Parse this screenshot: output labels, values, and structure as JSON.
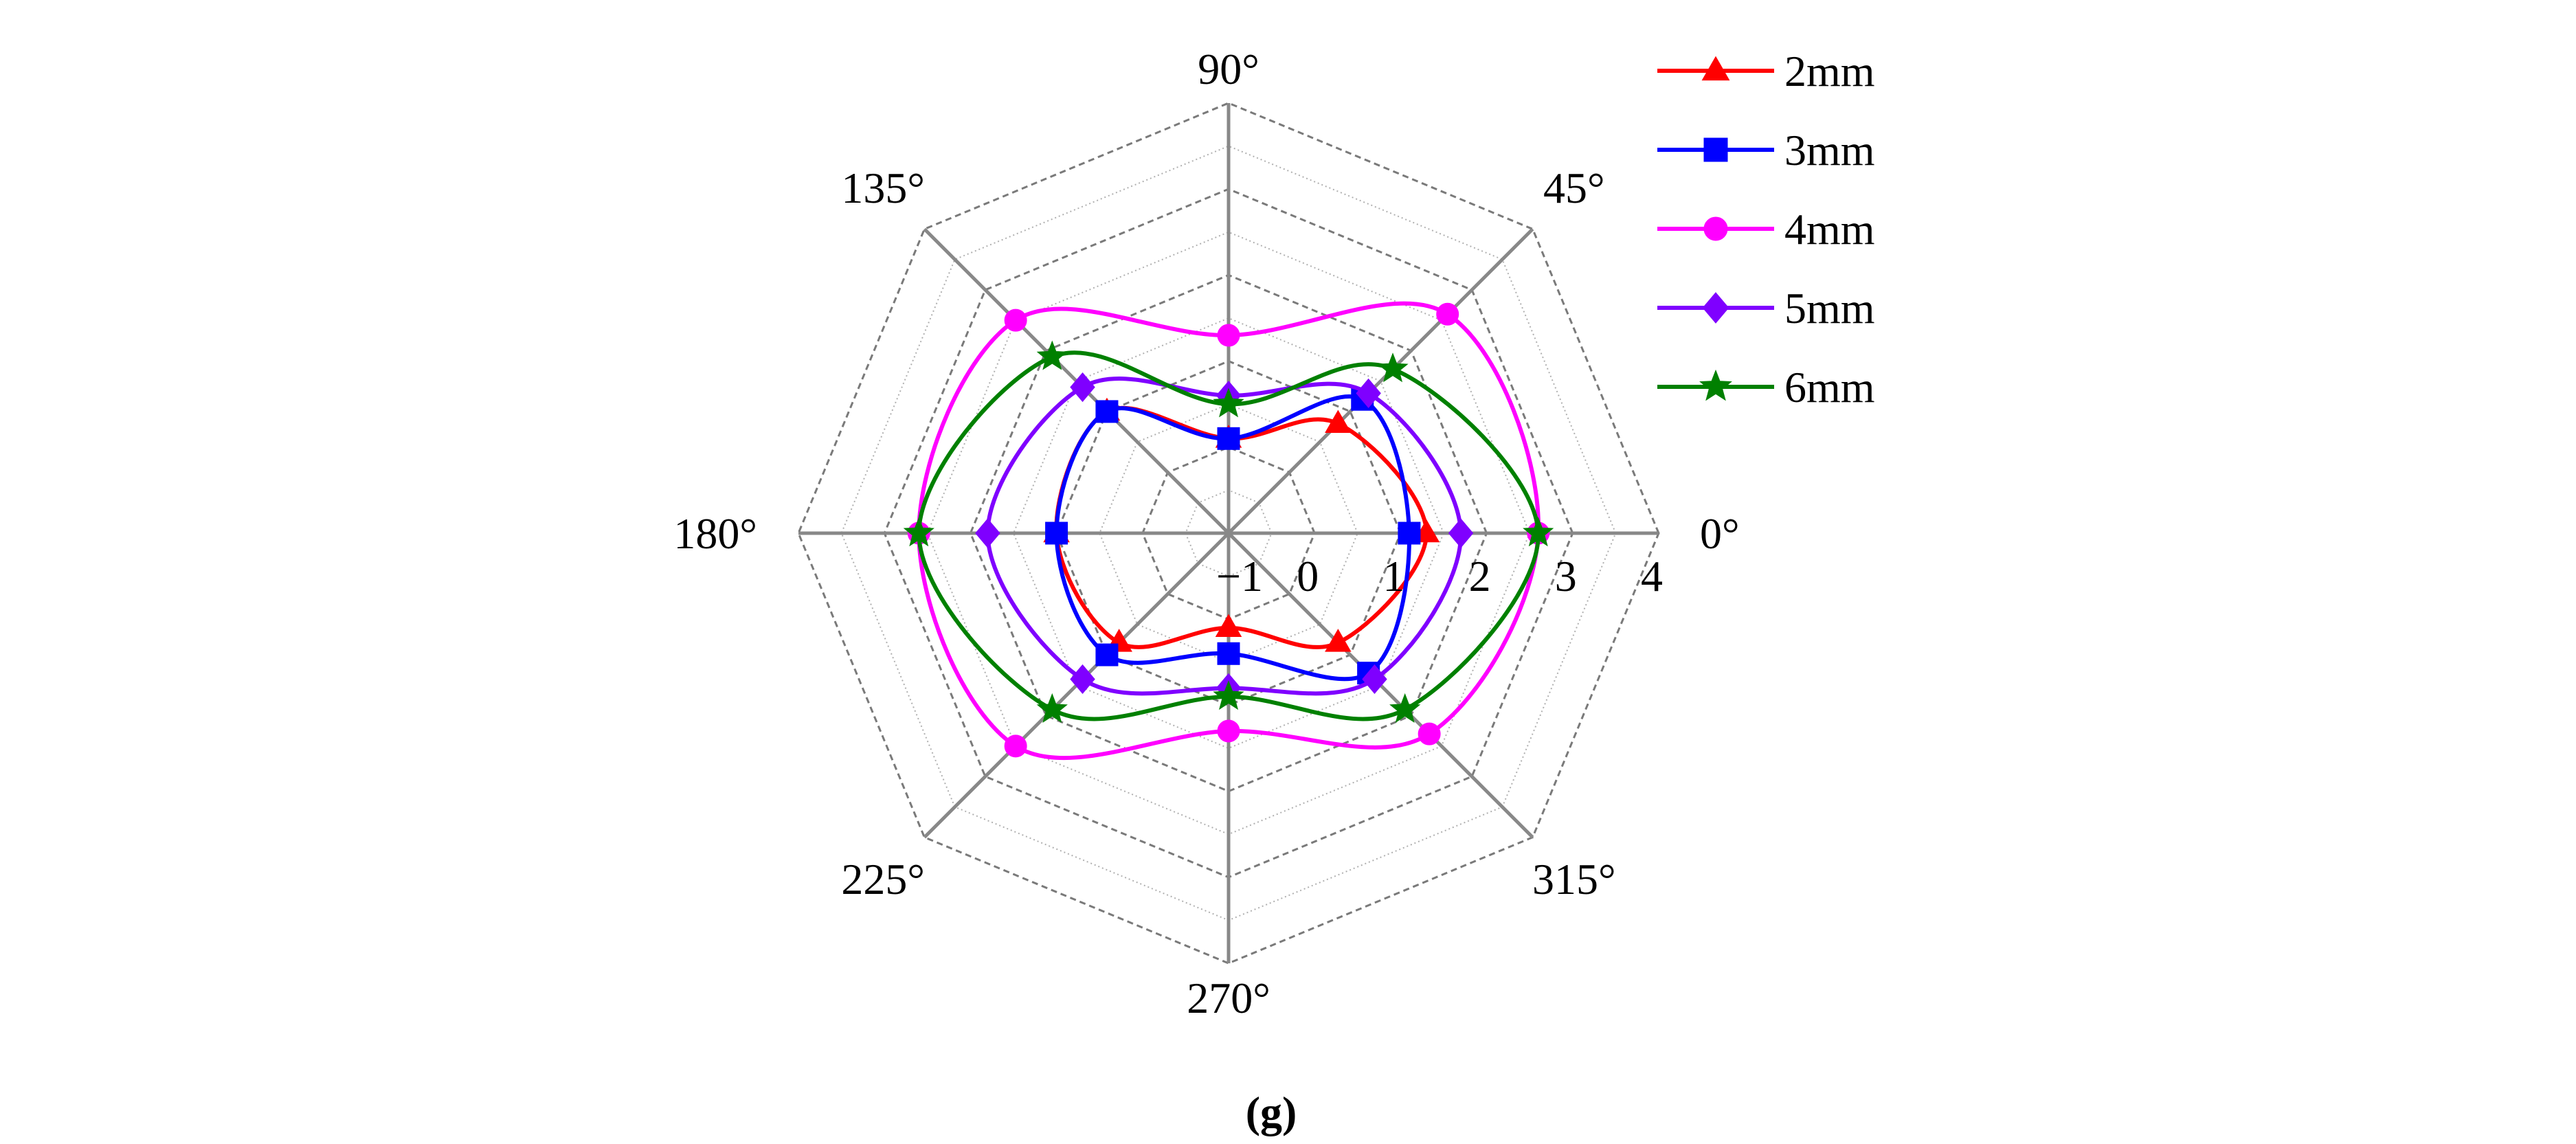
{
  "chart_data": {
    "type": "radar",
    "caption": "(g)",
    "angles": [
      "0°",
      "45°",
      "90°",
      "135°",
      "180°",
      "225°",
      "270°",
      "315°"
    ],
    "radial_axis": {
      "min": -1,
      "max": 4,
      "ticks": [
        "-1",
        "0",
        "1",
        "2",
        "3",
        "4"
      ]
    },
    "grid": true,
    "legend_position": "top-right",
    "series": [
      {
        "name": "2mm",
        "color": "#ff0000",
        "marker": "triangle",
        "values": [
          1.3,
          0.8,
          0.1,
          1.0,
          1.0,
          0.8,
          0.1,
          0.8
        ]
      },
      {
        "name": "3mm",
        "color": "#0000ff",
        "marker": "square",
        "values": [
          1.1,
          1.2,
          0.1,
          1.0,
          1.0,
          1.0,
          0.4,
          1.3
        ]
      },
      {
        "name": "4mm",
        "color": "#ff00ff",
        "marker": "circle",
        "values": [
          2.6,
          2.6,
          1.3,
          2.5,
          2.6,
          2.5,
          1.3,
          2.3
        ]
      },
      {
        "name": "5mm",
        "color": "#7f00ff",
        "marker": "diamond",
        "values": [
          1.7,
          1.3,
          0.6,
          1.4,
          1.8,
          1.4,
          0.8,
          1.4
        ]
      },
      {
        "name": "6mm",
        "color": "#008000",
        "marker": "star",
        "values": [
          2.6,
          1.7,
          0.5,
          1.9,
          2.6,
          1.9,
          0.9,
          1.9
        ]
      }
    ]
  }
}
